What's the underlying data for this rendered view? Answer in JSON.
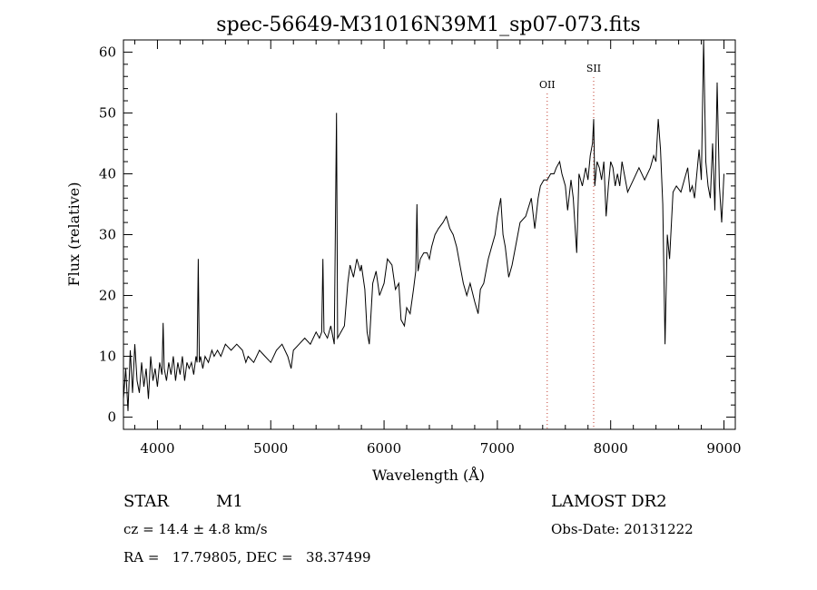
{
  "chart_data": {
    "type": "line",
    "title": "spec-56649-M31016N39M1_sp07-073.fits",
    "xlabel": "Wavelength (Å)",
    "ylabel": "Flux (relative)",
    "xlim": [
      3700,
      9100
    ],
    "ylim": [
      -2,
      62
    ],
    "xticks": [
      4000,
      5000,
      6000,
      7000,
      8000,
      9000
    ],
    "yticks": [
      0,
      10,
      20,
      30,
      40,
      50,
      60
    ],
    "spectral_lines": [
      {
        "label": "OII",
        "x": 7440
      },
      {
        "label": "SII",
        "x": 7850
      }
    ],
    "series": [
      {
        "points": [
          [
            3700,
            3
          ],
          [
            3720,
            8
          ],
          [
            3740,
            1
          ],
          [
            3760,
            11
          ],
          [
            3780,
            4
          ],
          [
            3800,
            12
          ],
          [
            3820,
            6
          ],
          [
            3840,
            4
          ],
          [
            3860,
            9
          ],
          [
            3880,
            5
          ],
          [
            3900,
            8
          ],
          [
            3920,
            3
          ],
          [
            3940,
            10
          ],
          [
            3960,
            6
          ],
          [
            3980,
            8
          ],
          [
            4000,
            5
          ],
          [
            4020,
            9
          ],
          [
            4040,
            7
          ],
          [
            4050,
            15.5
          ],
          [
            4060,
            8
          ],
          [
            4080,
            6
          ],
          [
            4100,
            9
          ],
          [
            4120,
            7
          ],
          [
            4140,
            10
          ],
          [
            4160,
            6
          ],
          [
            4180,
            9
          ],
          [
            4200,
            7
          ],
          [
            4220,
            10
          ],
          [
            4240,
            6
          ],
          [
            4260,
            9
          ],
          [
            4280,
            8
          ],
          [
            4300,
            9
          ],
          [
            4320,
            7
          ],
          [
            4340,
            10
          ],
          [
            4350,
            9
          ],
          [
            4360,
            26
          ],
          [
            4370,
            9
          ],
          [
            4380,
            10
          ],
          [
            4400,
            8
          ],
          [
            4420,
            10
          ],
          [
            4450,
            9
          ],
          [
            4480,
            11
          ],
          [
            4500,
            10
          ],
          [
            4530,
            11
          ],
          [
            4560,
            10
          ],
          [
            4600,
            12
          ],
          [
            4650,
            11
          ],
          [
            4700,
            12
          ],
          [
            4750,
            11
          ],
          [
            4780,
            9
          ],
          [
            4800,
            10
          ],
          [
            4850,
            9
          ],
          [
            4900,
            11
          ],
          [
            4950,
            10
          ],
          [
            5000,
            9
          ],
          [
            5050,
            11
          ],
          [
            5100,
            12
          ],
          [
            5150,
            10
          ],
          [
            5180,
            8
          ],
          [
            5200,
            11
          ],
          [
            5250,
            12
          ],
          [
            5300,
            13
          ],
          [
            5350,
            12
          ],
          [
            5400,
            14
          ],
          [
            5430,
            13
          ],
          [
            5450,
            14
          ],
          [
            5460,
            26
          ],
          [
            5470,
            14
          ],
          [
            5500,
            13
          ],
          [
            5530,
            15
          ],
          [
            5560,
            12
          ],
          [
            5580,
            50
          ],
          [
            5590,
            13
          ],
          [
            5620,
            14
          ],
          [
            5650,
            15
          ],
          [
            5680,
            22
          ],
          [
            5700,
            25
          ],
          [
            5730,
            23
          ],
          [
            5760,
            26
          ],
          [
            5790,
            24
          ],
          [
            5800,
            25
          ],
          [
            5830,
            21
          ],
          [
            5850,
            14
          ],
          [
            5870,
            12
          ],
          [
            5900,
            22
          ],
          [
            5930,
            24
          ],
          [
            5960,
            20
          ],
          [
            6000,
            22
          ],
          [
            6030,
            26
          ],
          [
            6070,
            25
          ],
          [
            6100,
            21
          ],
          [
            6130,
            22
          ],
          [
            6150,
            16
          ],
          [
            6180,
            15
          ],
          [
            6200,
            18
          ],
          [
            6230,
            17
          ],
          [
            6260,
            21
          ],
          [
            6280,
            24
          ],
          [
            6290,
            35
          ],
          [
            6300,
            24
          ],
          [
            6320,
            26
          ],
          [
            6350,
            27
          ],
          [
            6380,
            27
          ],
          [
            6400,
            26
          ],
          [
            6420,
            28
          ],
          [
            6450,
            30
          ],
          [
            6480,
            31
          ],
          [
            6520,
            32
          ],
          [
            6550,
            33
          ],
          [
            6580,
            31
          ],
          [
            6610,
            30
          ],
          [
            6640,
            28
          ],
          [
            6680,
            24
          ],
          [
            6700,
            22
          ],
          [
            6730,
            20
          ],
          [
            6760,
            22
          ],
          [
            6800,
            19
          ],
          [
            6830,
            17
          ],
          [
            6850,
            21
          ],
          [
            6880,
            22
          ],
          [
            6920,
            26
          ],
          [
            6950,
            28
          ],
          [
            6980,
            30
          ],
          [
            7000,
            33
          ],
          [
            7030,
            36
          ],
          [
            7050,
            30
          ],
          [
            7070,
            28
          ],
          [
            7100,
            23
          ],
          [
            7130,
            25
          ],
          [
            7160,
            28
          ],
          [
            7200,
            32
          ],
          [
            7250,
            33
          ],
          [
            7300,
            36
          ],
          [
            7330,
            31
          ],
          [
            7360,
            36
          ],
          [
            7380,
            38
          ],
          [
            7410,
            39
          ],
          [
            7440,
            39
          ],
          [
            7470,
            40
          ],
          [
            7500,
            40
          ],
          [
            7520,
            41
          ],
          [
            7550,
            42
          ],
          [
            7570,
            40
          ],
          [
            7600,
            38
          ],
          [
            7620,
            34
          ],
          [
            7650,
            39
          ],
          [
            7670,
            36
          ],
          [
            7700,
            27
          ],
          [
            7720,
            40
          ],
          [
            7750,
            38
          ],
          [
            7780,
            41
          ],
          [
            7800,
            39
          ],
          [
            7820,
            43
          ],
          [
            7840,
            45
          ],
          [
            7850,
            49
          ],
          [
            7860,
            38
          ],
          [
            7880,
            42
          ],
          [
            7900,
            41
          ],
          [
            7920,
            39
          ],
          [
            7940,
            42
          ],
          [
            7960,
            33
          ],
          [
            7980,
            38
          ],
          [
            8000,
            42
          ],
          [
            8020,
            41
          ],
          [
            8040,
            38
          ],
          [
            8060,
            40
          ],
          [
            8080,
            38
          ],
          [
            8100,
            42
          ],
          [
            8150,
            37
          ],
          [
            8200,
            39
          ],
          [
            8250,
            41
          ],
          [
            8300,
            39
          ],
          [
            8350,
            41
          ],
          [
            8380,
            43
          ],
          [
            8400,
            42
          ],
          [
            8420,
            49
          ],
          [
            8440,
            44
          ],
          [
            8460,
            35
          ],
          [
            8480,
            12
          ],
          [
            8500,
            30
          ],
          [
            8520,
            26
          ],
          [
            8550,
            37
          ],
          [
            8580,
            38
          ],
          [
            8620,
            37
          ],
          [
            8650,
            39
          ],
          [
            8680,
            41
          ],
          [
            8700,
            37
          ],
          [
            8720,
            38
          ],
          [
            8740,
            36
          ],
          [
            8760,
            40
          ],
          [
            8780,
            44
          ],
          [
            8800,
            39
          ],
          [
            8820,
            62
          ],
          [
            8840,
            42
          ],
          [
            8860,
            38
          ],
          [
            8880,
            36
          ],
          [
            8900,
            45
          ],
          [
            8920,
            34
          ],
          [
            8940,
            55
          ],
          [
            8960,
            38
          ],
          [
            8980,
            32
          ],
          [
            9000,
            40
          ]
        ]
      }
    ]
  },
  "footer": {
    "object_type": "STAR",
    "subclass": "M1",
    "survey": "LAMOST DR2",
    "cz": "cz = 14.4 ± 4.8 km/s",
    "obs_date": "Obs-Date: 20131222",
    "coords": "RA =   17.79805, DEC =   38.37499"
  }
}
